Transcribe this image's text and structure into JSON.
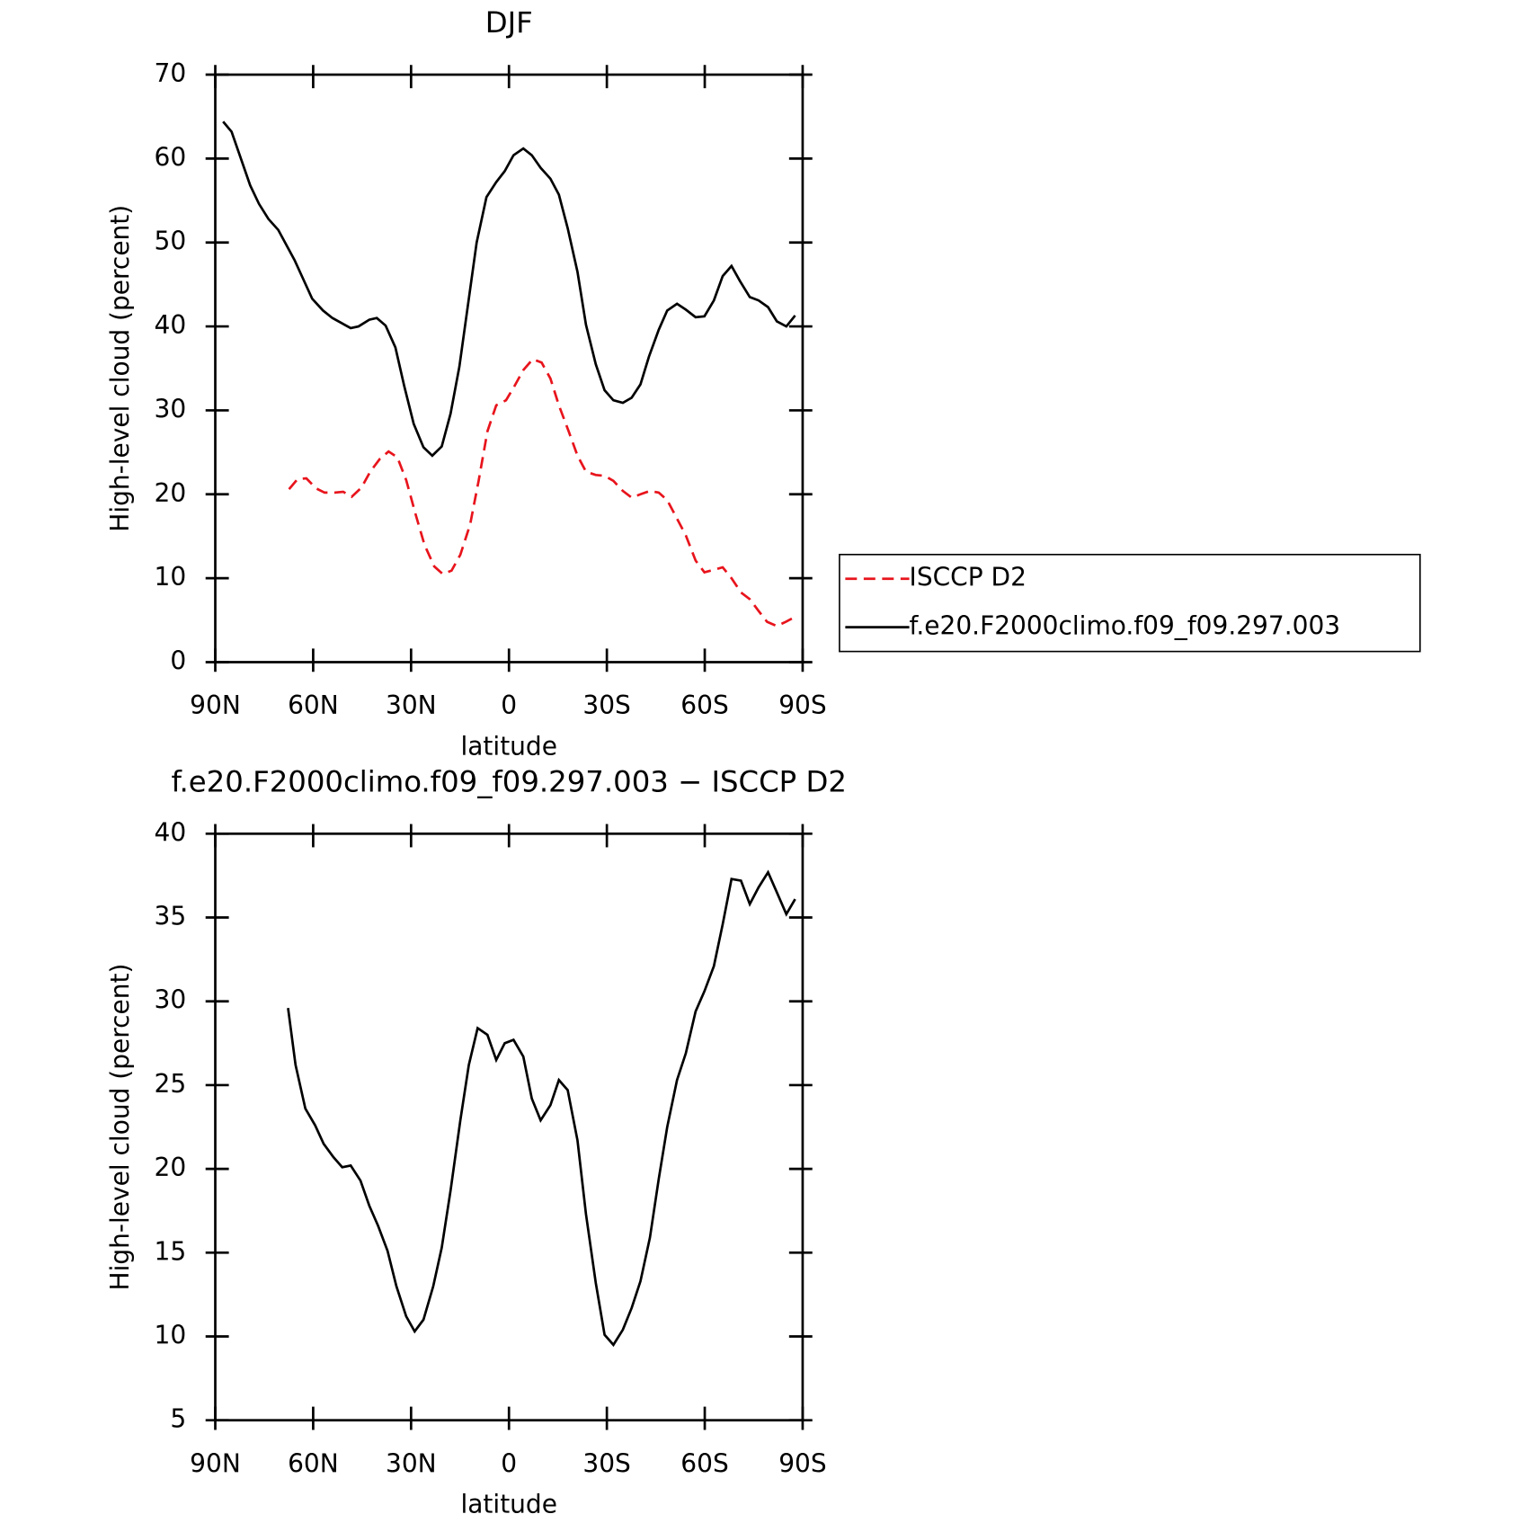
{
  "chart_data": [
    {
      "type": "line",
      "title": "DJF",
      "xlabel": "latitude",
      "ylabel": "High-level cloud (percent)",
      "xlim": [
        90,
        -90
      ],
      "xticks": [
        {
          "value": 90,
          "label": "90N"
        },
        {
          "value": 60,
          "label": "60N"
        },
        {
          "value": 30,
          "label": "30N"
        },
        0,
        {
          "value": -30,
          "label": "30S"
        },
        {
          "value": -60,
          "label": "60S"
        },
        {
          "value": -90,
          "label": "90S"
        }
      ],
      "ylim": [
        0,
        70
      ],
      "yticks": [
        0,
        10,
        20,
        30,
        40,
        50,
        60,
        70
      ],
      "legend": "right",
      "series": [
        {
          "name": "ISCCP D2",
          "color": "#e8141c",
          "dash": true,
          "x": [
            67.4,
            64.8,
            62.1,
            59.1,
            56.5,
            53.5,
            50.8,
            48.2,
            45.2,
            42.5,
            39.6,
            36.9,
            34.2,
            31.5,
            28.6,
            25.9,
            22.9,
            20.3,
            17.6,
            14.9,
            11.9,
            9.3,
            6.6,
            3.9,
            0.9,
            -1.7,
            -4.4,
            -7.3,
            -10,
            -12.7,
            -15.3,
            -18.3,
            -21,
            -23.6,
            -26.6,
            -29.3,
            -32,
            -34.9,
            -37.6,
            -40.3,
            -43.2,
            -45.9,
            -48.5,
            -51.5,
            -54.2,
            -57.2,
            -59.9,
            -62.8,
            -65.5,
            -68.2,
            -71.1,
            -73.8,
            -76.5,
            -79.1,
            -82.1,
            -84.8,
            -87.7
          ],
          "values": [
            20.6,
            21.8,
            21.9,
            20.7,
            20.2,
            20.2,
            20.3,
            19.7,
            20.8,
            22.7,
            24.2,
            25.1,
            24.4,
            21.7,
            17.6,
            14,
            11.4,
            10.5,
            10.9,
            12.8,
            16.4,
            21.6,
            27.5,
            30.6,
            31.2,
            32.9,
            34.8,
            36.1,
            35.7,
            33.8,
            30.6,
            27.5,
            24.6,
            22.7,
            22.3,
            22.2,
            21.6,
            20.4,
            19.6,
            20,
            20.4,
            20.2,
            19.3,
            17.1,
            15.1,
            12.1,
            10.7,
            11,
            11.3,
            10,
            8.3,
            7.5,
            6.1,
            4.8,
            4.3,
            4.8,
            5.4
          ]
        },
        {
          "name": "f.e20.F2000climo.f09_f09.297.003",
          "color": "#000000",
          "dash": false,
          "x": [
            87.6,
            85,
            79.3,
            76.6,
            73.7,
            70.7,
            65.7,
            60.3,
            57,
            54.1,
            48.5,
            46.1,
            42.8,
            40.5,
            37.8,
            34.8,
            32.1,
            29.2,
            26.2,
            23.5,
            20.6,
            17.9,
            15.2,
            9.9,
            6.9,
            3.9,
            1.3,
            -1.4,
            -4.4,
            -7,
            -9.7,
            -12.7,
            -15.3,
            -18,
            -21,
            -23.6,
            -26.6,
            -29.3,
            -32,
            -34.9,
            -37.6,
            -40.3,
            -42.9,
            -45.9,
            -48.5,
            -51.5,
            -54.2,
            -57.2,
            -59.9,
            -62.8,
            -65.5,
            -68.2,
            -70.8,
            -73.8,
            -76.5,
            -79.4,
            -82.1,
            -85,
            -87.7
          ],
          "values": [
            64.4,
            63.2,
            56.8,
            54.6,
            52.8,
            51.5,
            47.9,
            43.3,
            41.9,
            41,
            39.8,
            40,
            40.8,
            41,
            40.1,
            37.5,
            32.9,
            28.4,
            25.6,
            24.6,
            25.7,
            29.6,
            35.2,
            50,
            55.4,
            57.2,
            58.5,
            60.4,
            61.2,
            60.4,
            58.9,
            57.6,
            55.7,
            51.7,
            46.5,
            40.2,
            35.5,
            32.4,
            31.2,
            30.9,
            31.5,
            33.1,
            36.4,
            39.6,
            41.9,
            42.7,
            42,
            41.1,
            41.2,
            43.1,
            46,
            47.2,
            45.4,
            43.5,
            43.1,
            42.3,
            40.6,
            40,
            41.3
          ]
        }
      ]
    },
    {
      "type": "line",
      "title": "f.e20.F2000climo.f09_f09.297.003 − ISCCP D2",
      "xlabel": "latitude",
      "ylabel": "High-level cloud (percent)",
      "xlim": [
        90,
        -90
      ],
      "xticks": [
        {
          "value": 90,
          "label": "90N"
        },
        {
          "value": 60,
          "label": "60N"
        },
        {
          "value": 30,
          "label": "30N"
        },
        0,
        {
          "value": -30,
          "label": "30S"
        },
        {
          "value": -60,
          "label": "60S"
        },
        {
          "value": -90,
          "label": "90S"
        }
      ],
      "ylim": [
        5,
        40
      ],
      "yticks": [
        5,
        10,
        15,
        20,
        25,
        30,
        35,
        40
      ],
      "series": [
        {
          "color": "#000000",
          "dash": false,
          "x": [
            67.7,
            65.4,
            62.4,
            59.4,
            56.8,
            53.8,
            51.1,
            48.5,
            45.5,
            42.8,
            40.1,
            37.2,
            34.5,
            31.5,
            28.9,
            26.2,
            23.2,
            20.6,
            17.9,
            14.9,
            12.3,
            9.6,
            6.6,
            3.9,
            1.3,
            -1.4,
            -4.4,
            -7,
            -9.7,
            -12.7,
            -15.3,
            -18,
            -21,
            -23.6,
            -26.6,
            -29.3,
            -32,
            -34.9,
            -37.6,
            -40.3,
            -43.2,
            -45.9,
            -48.5,
            -51.5,
            -54.2,
            -57.2,
            -59.9,
            -62.8,
            -65.5,
            -68.2,
            -71.1,
            -73.8,
            -76.5,
            -79.4,
            -82.1,
            -85,
            -87.7
          ],
          "values": [
            29.6,
            26.2,
            23.6,
            22.6,
            21.5,
            20.7,
            20.1,
            20.2,
            19.3,
            17.8,
            16.6,
            15.1,
            13,
            11.2,
            10.3,
            11,
            13,
            15.3,
            18.7,
            22.9,
            26.2,
            28.4,
            28,
            26.5,
            27.5,
            27.7,
            26.7,
            24.2,
            22.9,
            23.8,
            25.3,
            24.7,
            21.7,
            17.3,
            13.2,
            10.1,
            9.5,
            10.4,
            11.7,
            13.3,
            15.9,
            19.4,
            22.5,
            25.3,
            26.9,
            29.4,
            30.6,
            32.1,
            34.6,
            37.3,
            37.2,
            35.8,
            36.8,
            37.7,
            36.5,
            35.2,
            36.1
          ]
        }
      ]
    }
  ]
}
